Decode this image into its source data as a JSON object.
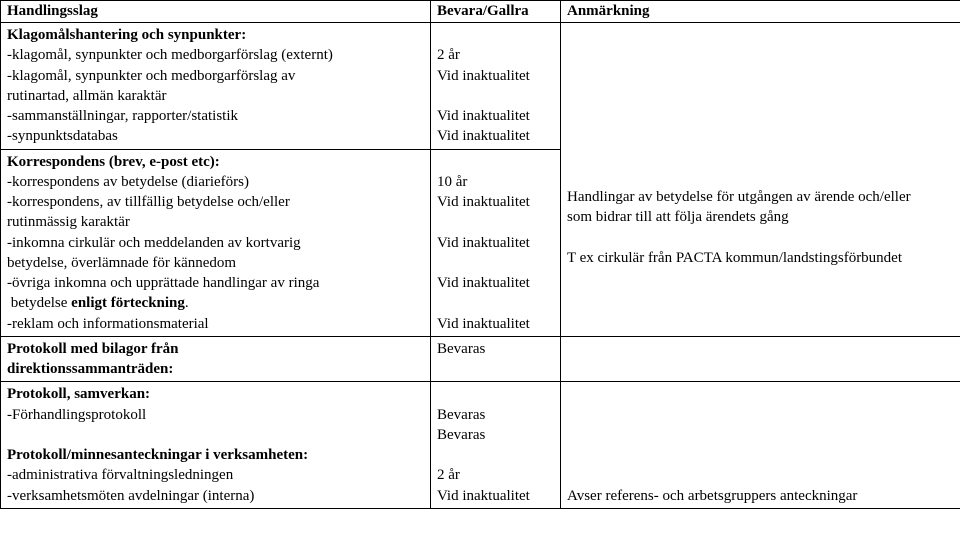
{
  "header": {
    "col1": "Handlingsslag",
    "col2": "Bevara/Gallra",
    "col3": "Anmärkning"
  },
  "block1": {
    "title": "Klagomålshantering och synpunkter:",
    "lines": [
      {
        "label": "-klagomål, synpunkter och medborgarförslag (externt)",
        "val": "2 år"
      },
      {
        "label": "-klagomål, synpunkter och medborgarförslag av",
        "val": "Vid inaktualitet"
      },
      {
        "label_cont": " rutinartad, allmän karaktär",
        "val": ""
      },
      {
        "label": "-sammanställningar, rapporter/statistik",
        "val": "Vid inaktualitet"
      },
      {
        "label": "-synpunktsdatabas",
        "val": "Vid inaktualitet"
      }
    ]
  },
  "block2": {
    "title": "Korrespondens (brev, e-post etc):",
    "lines": [
      {
        "label": "-korrespondens av betydelse (diarieförs)",
        "val": "10 år",
        "note": "Handlingar av betydelse för utgången av ärende och/eller"
      },
      {
        "label": "-korrespondens, av tillfällig betydelse och/eller",
        "val": "Vid inaktualitet",
        "note": "som bidrar till att följa ärendets gång"
      },
      {
        "label_cont": " rutinmässig karaktär",
        "val": "",
        "note": ""
      },
      {
        "label": "-inkomna cirkulär och meddelanden av kortvarig",
        "val": "Vid inaktualitet",
        "note": "T ex cirkulär från PACTA kommun/landstingsförbundet"
      },
      {
        "label_cont": " betydelse, överlämnade för kännedom",
        "val": "",
        "note": ""
      },
      {
        "label": "-övriga inkomna och upprättade handlingar av ringa",
        "val": "Vid inaktualitet",
        "note": ""
      },
      {
        "label_cont": " betydelse enligt förteckning.",
        "val": "",
        "note": ""
      },
      {
        "label": "-reklam och informationsmaterial",
        "val": "Vid inaktualitet",
        "note": ""
      }
    ],
    "cont_bold": "enligt förteckning"
  },
  "block3": {
    "title_l1": "Protokoll med bilagor från",
    "title_l2": "direktionssammanträden:",
    "val": "Bevaras"
  },
  "block4": {
    "title": "Protokoll, samverkan:",
    "line1": {
      "label": "-Förhandlingsprotokoll",
      "val": "Bevaras"
    },
    "line2_val": "Bevaras",
    "title2": "Protokoll/minnesanteckningar i verksamheten:",
    "line3": {
      "label": "-administrativa förvaltningsledningen",
      "val": "2 år"
    },
    "line4": {
      "label": "-verksamhetsmöten avdelningar (interna)",
      "val": "Vid inaktualitet",
      "note": "Avser referens- och arbetsgruppers anteckningar"
    }
  }
}
